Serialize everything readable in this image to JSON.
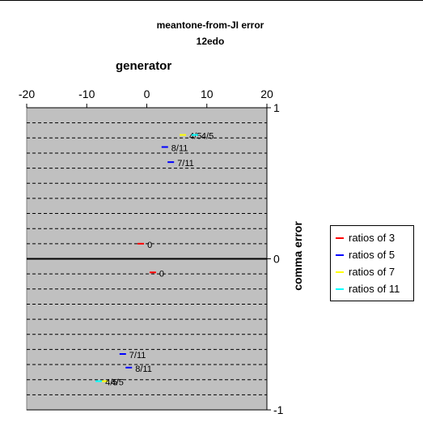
{
  "chart_data": {
    "type": "scatter",
    "title": "meantone-from-JI error",
    "subtitle": "12edo",
    "xlabel": "generator",
    "ylabel": "comma error",
    "xlim": [
      -20,
      20
    ],
    "ylim": [
      -1,
      1
    ],
    "x_ticks": [
      "-20",
      "-10",
      "0",
      "10",
      "20"
    ],
    "y_ticks": [
      "1",
      "0",
      "-1"
    ],
    "plot_background": "#c0c0c0",
    "grid": "horizontal dashed",
    "legend_position": "right",
    "series": [
      {
        "name": "ratios of 3",
        "color": "#ff0000",
        "points": [
          {
            "x": -1,
            "y": 0.1,
            "label": "0"
          },
          {
            "x": 1,
            "y": -0.09,
            "label": "0"
          }
        ]
      },
      {
        "name": "ratios of 5",
        "color": "#0000ff",
        "points": [
          {
            "x": 3,
            "y": 0.74,
            "label": "8/11"
          },
          {
            "x": 4,
            "y": 0.64,
            "label": "7/11"
          },
          {
            "x": -4,
            "y": -0.63,
            "label": "7/11"
          },
          {
            "x": -3,
            "y": -0.72,
            "label": "8/11"
          }
        ]
      },
      {
        "name": "ratios of 7",
        "color": "#ffff00",
        "points": [
          {
            "x": 6,
            "y": 0.82,
            "label": "4/5"
          },
          {
            "x": -7,
            "y": -0.81,
            "label": "4/5"
          }
        ]
      },
      {
        "name": "ratios of 11",
        "color": "#00ffff",
        "points": [
          {
            "x": 8,
            "y": 0.82,
            "label": "4/5"
          },
          {
            "x": -8,
            "y": -0.81,
            "label": "4/5"
          }
        ]
      }
    ]
  }
}
